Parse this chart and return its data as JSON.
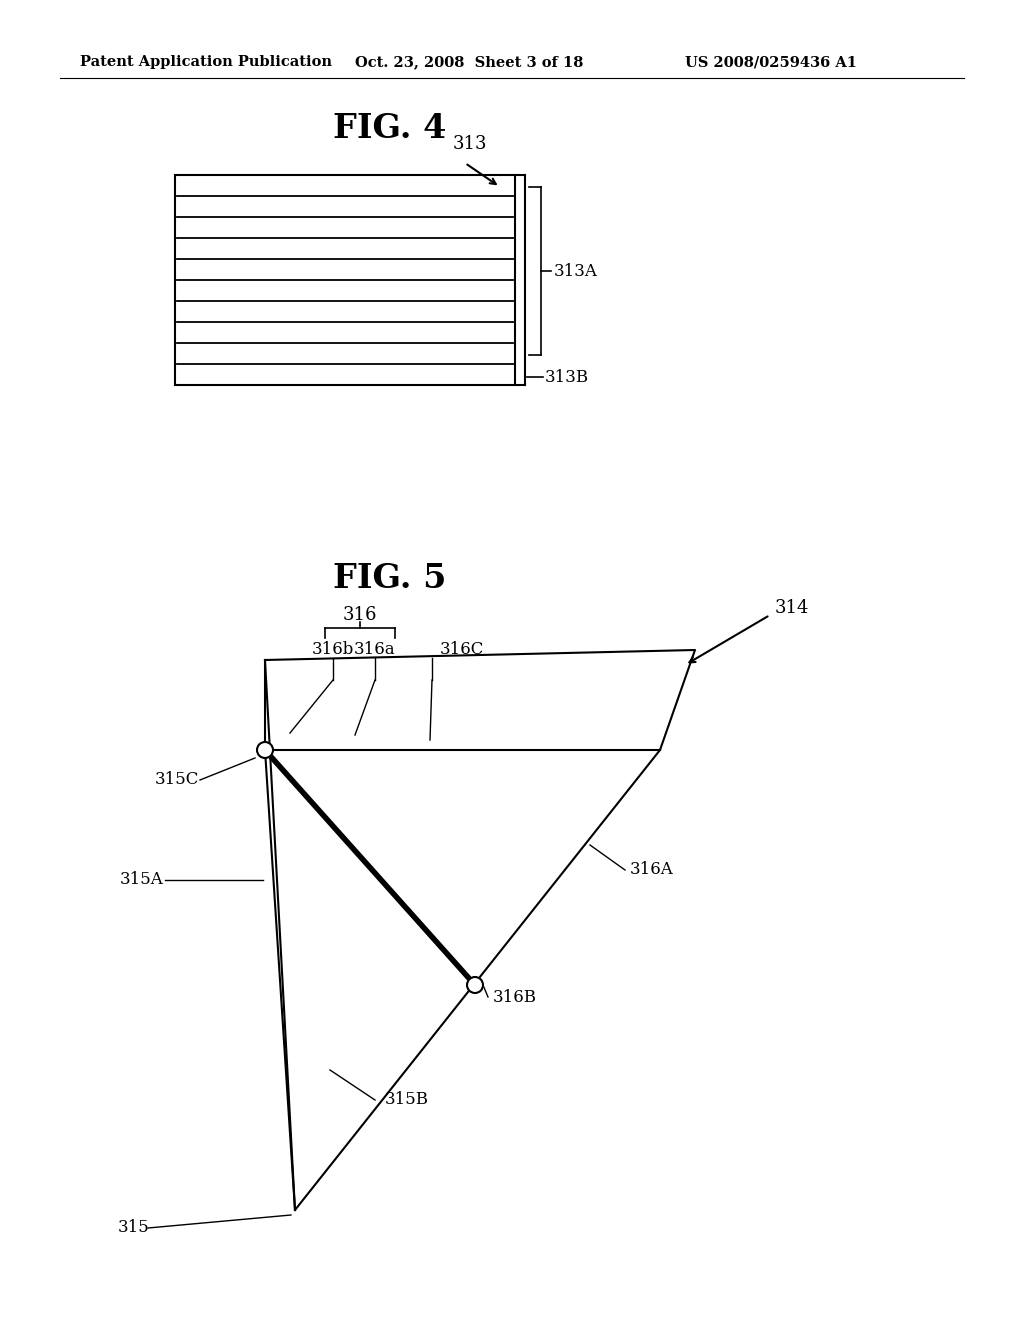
{
  "bg_color": "#ffffff",
  "header_text": "Patent Application Publication",
  "header_date": "Oct. 23, 2008  Sheet 3 of 18",
  "header_patent": "US 2008/0259436 A1",
  "fig4_title": "FIG. 4",
  "fig5_title": "FIG. 5",
  "fig4_label_313": "313",
  "fig4_label_313A": "313A",
  "fig4_label_313B": "313B",
  "fig5_label_314": "314",
  "fig5_label_315": "315",
  "fig5_label_315A": "315A",
  "fig5_label_315B": "315B",
  "fig5_label_315C": "315C",
  "fig5_label_316": "316",
  "fig5_label_316a": "316a",
  "fig5_label_316b": "316b",
  "fig5_label_316A": "316A",
  "fig5_label_316B": "316B",
  "fig5_label_316C": "316C",
  "line_color": "#000000"
}
